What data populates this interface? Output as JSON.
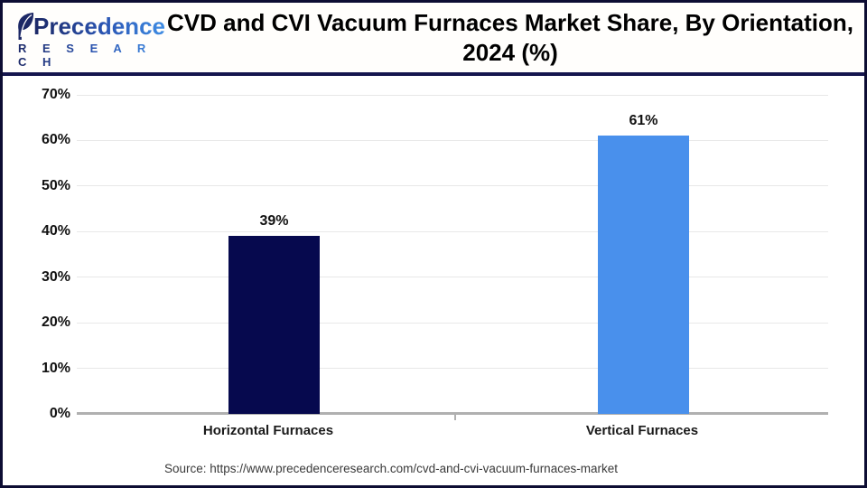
{
  "header": {
    "brand": {
      "name": "Precedence",
      "sub": "R E S E A R C H"
    },
    "title_line1": "CVD and CVI Vacuum Furnaces Market Share, By Orientation,",
    "title_line2": "2024 (%)"
  },
  "chart_data": {
    "type": "bar",
    "title": "CVD and CVI Vacuum Furnaces Market Share, By Orientation, 2024 (%)",
    "categories": [
      "Horizontal Furnaces",
      "Vertical Furnaces"
    ],
    "values": [
      39,
      61
    ],
    "value_labels": [
      "39%",
      "61%"
    ],
    "unit": "%",
    "bar_colors": [
      "#06094E",
      "#4990EC"
    ],
    "ylim": [
      0,
      70
    ],
    "y_tick_step": 10,
    "y_ticks": [
      "0%",
      "10%",
      "20%",
      "30%",
      "40%",
      "50%",
      "60%",
      "70%"
    ],
    "grid": true,
    "legend": "none"
  },
  "source_text": "Source: https://www.precedenceresearch.com/cvd-and-cvi-vacuum-furnaces-market",
  "colors": {
    "bar_horizontal": "#06094E",
    "bar_vertical": "#4990EC",
    "frame_border": "#0D0D33",
    "header_divider": "#15154E",
    "gridline": "#E8E8E8",
    "axis_line": "#B0B0B0",
    "title_text": "#000000",
    "logo_navy": "#1C2866",
    "logo_blue": "#3F8DE4"
  }
}
